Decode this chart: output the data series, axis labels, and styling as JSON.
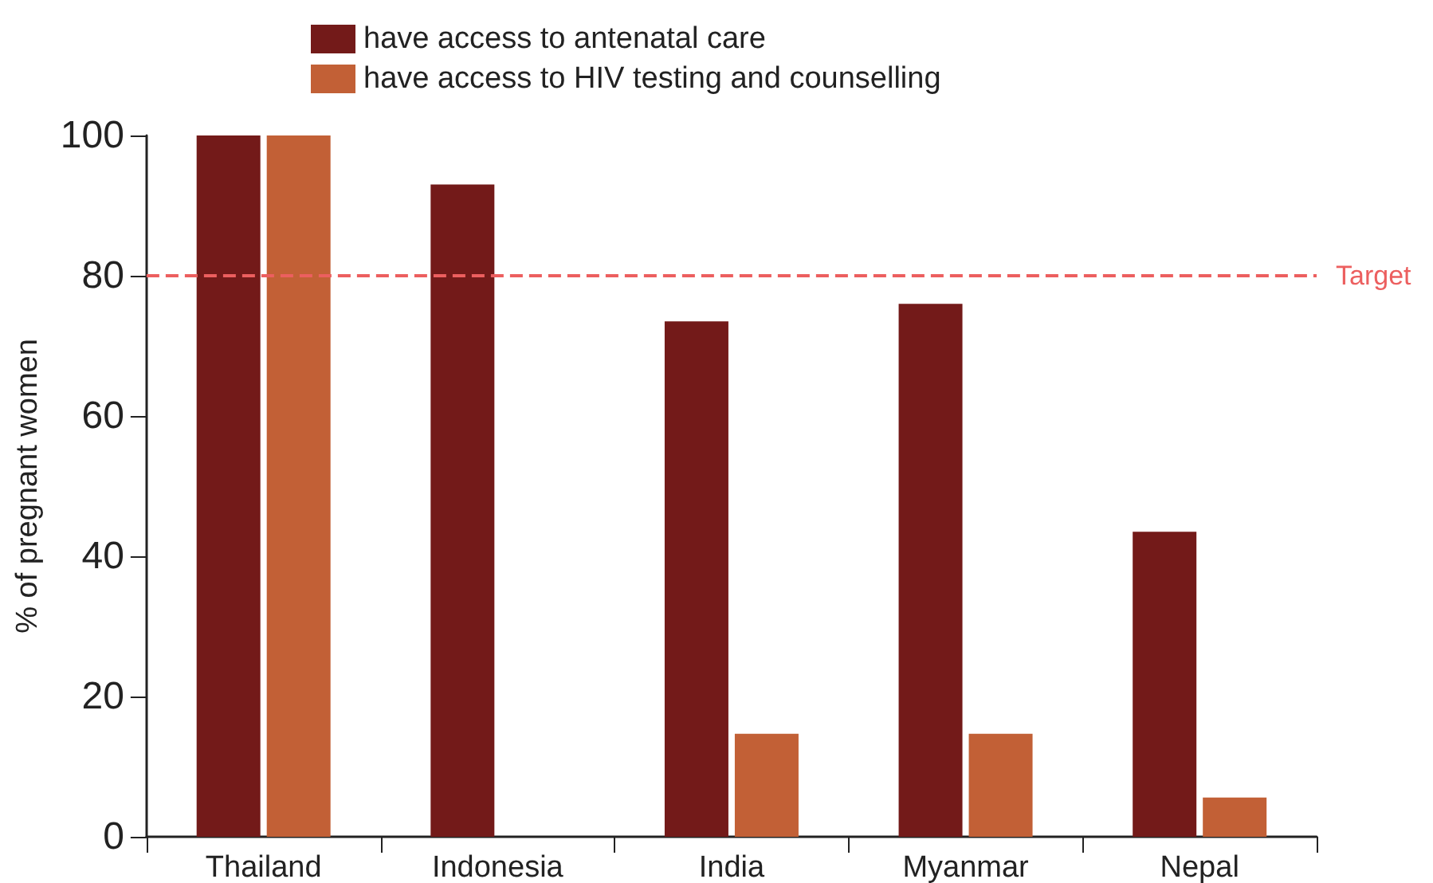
{
  "chart_data": {
    "type": "bar",
    "ylabel": "% of pregnant women",
    "categories": [
      "Thailand",
      "Indonesia",
      "India",
      "Myanmar",
      "Nepal"
    ],
    "series": [
      {
        "name": "have access to antenatal care",
        "color": "#731a19",
        "values": [
          100,
          93,
          73.5,
          76,
          43.5
        ]
      },
      {
        "name": "have access to HIV testing and counselling",
        "color": "#c26036",
        "values": [
          100,
          null,
          14.7,
          14.7,
          5.6
        ]
      }
    ],
    "ylim": [
      0,
      100
    ],
    "yticks": [
      0,
      20,
      40,
      60,
      80,
      100
    ],
    "grid": false,
    "legend": "top",
    "ref_lines": [
      {
        "axis": "y",
        "value": 80,
        "label": "Target",
        "color": "#ec5f5f",
        "line_style": "dashed"
      }
    ]
  }
}
